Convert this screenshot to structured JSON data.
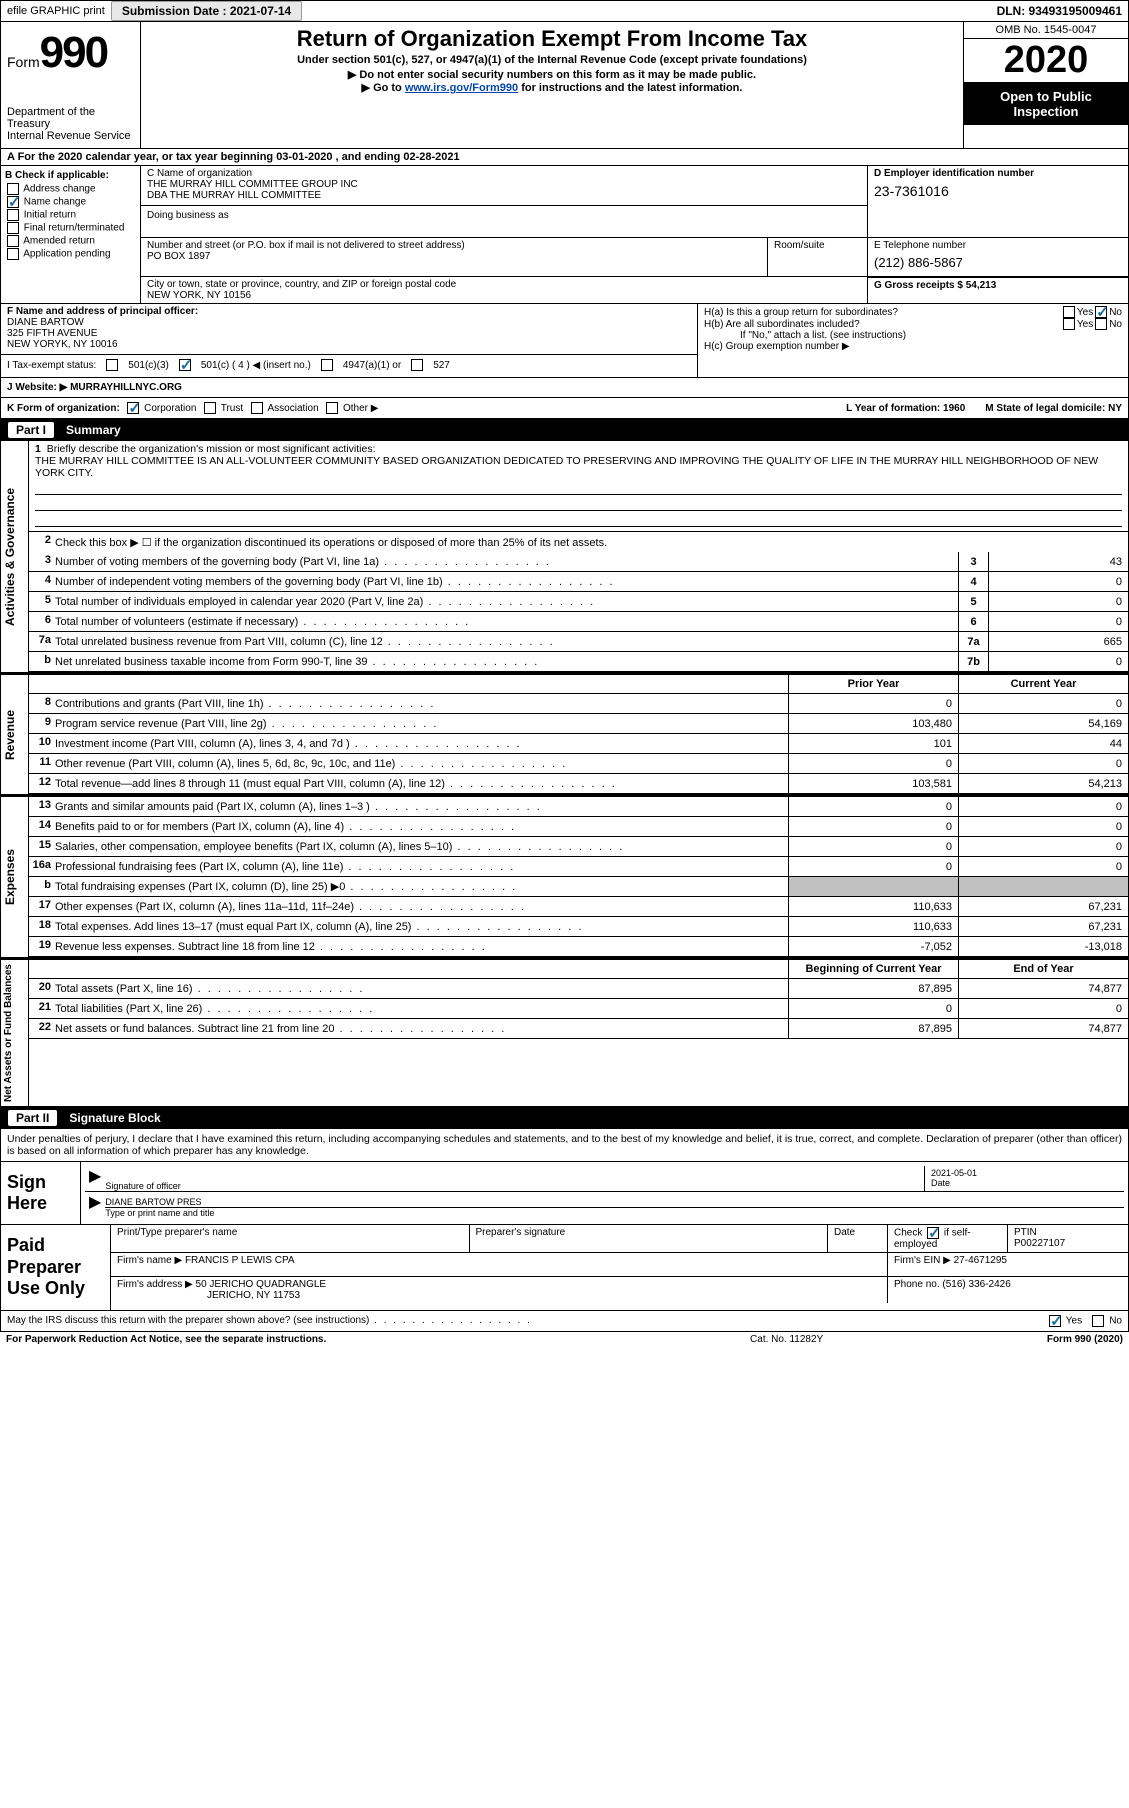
{
  "header": {
    "efile_label": "efile GRAPHIC print",
    "submission_label": "Submission Date : 2021-07-14",
    "dln_label": "DLN: 93493195009461"
  },
  "title": {
    "form_prefix": "Form",
    "form_number": "990",
    "dept": "Department of the Treasury\nInternal Revenue Service",
    "main": "Return of Organization Exempt From Income Tax",
    "sub": "Under section 501(c), 527, or 4947(a)(1) of the Internal Revenue Code (except private foundations)",
    "note1": "▶ Do not enter social security numbers on this form as it may be made public.",
    "note2_pre": "▶ Go to ",
    "note2_link": "www.irs.gov/Form990",
    "note2_post": " for instructions and the latest information.",
    "omb": "OMB No. 1545-0047",
    "year": "2020",
    "public": "Open to Public Inspection"
  },
  "a_row": "A For the 2020 calendar year, or tax year beginning 03-01-2020     , and ending 02-28-2021",
  "box_b": {
    "header": "B Check if applicable:",
    "items": [
      "Address change",
      "Name change",
      "Initial return",
      "Final return/terminated",
      "Amended return",
      "Application pending"
    ],
    "checked_idx": 1
  },
  "box_c": {
    "label": "C Name of organization",
    "name": "THE MURRAY HILL COMMITTEE GROUP INC\nDBA THE MURRAY HILL COMMITTEE",
    "dba_label": "Doing business as",
    "street_label": "Number and street (or P.O. box if mail is not delivered to street address)",
    "street": "PO BOX 1897",
    "room_label": "Room/suite",
    "city_label": "City or town, state or province, country, and ZIP or foreign postal code",
    "city": "NEW YORK, NY  10156"
  },
  "box_d": {
    "label": "D Employer identification number",
    "ein": "23-7361016"
  },
  "box_e": {
    "label": "E Telephone number",
    "tel": "(212) 886-5867"
  },
  "box_g": {
    "label": "G Gross receipts $ 54,213"
  },
  "box_f": {
    "label": "F  Name and address of principal officer:",
    "name": "DIANE BARTOW",
    "street": "325 FIFTH AVENUE",
    "city": "NEW YORYK, NY  10016"
  },
  "box_h": {
    "a": "H(a)  Is this a group return for subordinates?",
    "b": "H(b)  Are all subordinates included?",
    "b_note": "If \"No,\" attach a list. (see instructions)",
    "c": "H(c)  Group exemption number ▶"
  },
  "status": {
    "label": "I   Tax-exempt status:",
    "opts": [
      "501(c)(3)",
      "501(c) ( 4 ) ◀ (insert no.)",
      "4947(a)(1) or",
      "527"
    ],
    "checked_idx": 1
  },
  "j": {
    "label": "J   Website: ▶",
    "value": "MURRAYHILLNYC.ORG"
  },
  "k": {
    "label": "K Form of organization:",
    "opts": [
      "Corporation",
      "Trust",
      "Association",
      "Other ▶"
    ],
    "checked_idx": 0,
    "l": "L Year of formation: 1960",
    "m": "M State of legal domicile: NY"
  },
  "part1": {
    "num": "Part I",
    "title": "Summary"
  },
  "mission": {
    "num": "1",
    "label": "Briefly describe the organization's mission or most significant activities:",
    "text": "THE MURRAY HILL COMMITTEE IS AN ALL-VOLUNTEER COMMUNITY BASED ORGANIZATION DEDICATED TO PRESERVING AND IMPROVING THE QUALITY OF LIFE IN THE MURRAY HILL NEIGHBORHOOD OF NEW YORK CITY."
  },
  "gov": {
    "tab": "Activities & Governance",
    "l2": "Check this box ▶ ☐  if the organization discontinued its operations or disposed of more than 25% of its net assets.",
    "lines": [
      {
        "n": "3",
        "d": "Number of voting members of the governing body (Part VI, line 1a)",
        "box": "3",
        "v": "43"
      },
      {
        "n": "4",
        "d": "Number of independent voting members of the governing body (Part VI, line 1b)",
        "box": "4",
        "v": "0"
      },
      {
        "n": "5",
        "d": "Total number of individuals employed in calendar year 2020 (Part V, line 2a)",
        "box": "5",
        "v": "0"
      },
      {
        "n": "6",
        "d": "Total number of volunteers (estimate if necessary)",
        "box": "6",
        "v": "0"
      },
      {
        "n": "7a",
        "d": "Total unrelated business revenue from Part VIII, column (C), line 12",
        "box": "7a",
        "v": "665"
      },
      {
        "n": "b",
        "d": "Net unrelated business taxable income from Form 990-T, line 39",
        "box": "7b",
        "v": "0"
      }
    ]
  },
  "rev": {
    "tab": "Revenue",
    "hdr_prior": "Prior Year",
    "hdr_curr": "Current Year",
    "lines": [
      {
        "n": "8",
        "d": "Contributions and grants (Part VIII, line 1h)",
        "p": "0",
        "c": "0"
      },
      {
        "n": "9",
        "d": "Program service revenue (Part VIII, line 2g)",
        "p": "103,480",
        "c": "54,169"
      },
      {
        "n": "10",
        "d": "Investment income (Part VIII, column (A), lines 3, 4, and 7d )",
        "p": "101",
        "c": "44"
      },
      {
        "n": "11",
        "d": "Other revenue (Part VIII, column (A), lines 5, 6d, 8c, 9c, 10c, and 11e)",
        "p": "0",
        "c": "0"
      },
      {
        "n": "12",
        "d": "Total revenue—add lines 8 through 11 (must equal Part VIII, column (A), line 12)",
        "p": "103,581",
        "c": "54,213"
      }
    ]
  },
  "exp": {
    "tab": "Expenses",
    "lines": [
      {
        "n": "13",
        "d": "Grants and similar amounts paid (Part IX, column (A), lines 1–3 )",
        "p": "0",
        "c": "0"
      },
      {
        "n": "14",
        "d": "Benefits paid to or for members (Part IX, column (A), line 4)",
        "p": "0",
        "c": "0"
      },
      {
        "n": "15",
        "d": "Salaries, other compensation, employee benefits (Part IX, column (A), lines 5–10)",
        "p": "0",
        "c": "0"
      },
      {
        "n": "16a",
        "d": "Professional fundraising fees (Part IX, column (A), line 11e)",
        "p": "0",
        "c": "0"
      },
      {
        "n": "b",
        "d": "Total fundraising expenses (Part IX, column (D), line 25) ▶0",
        "p": "",
        "c": "",
        "grey": true
      },
      {
        "n": "17",
        "d": "Other expenses (Part IX, column (A), lines 11a–11d, 11f–24e)",
        "p": "110,633",
        "c": "67,231"
      },
      {
        "n": "18",
        "d": "Total expenses. Add lines 13–17 (must equal Part IX, column (A), line 25)",
        "p": "110,633",
        "c": "67,231"
      },
      {
        "n": "19",
        "d": "Revenue less expenses. Subtract line 18 from line 12",
        "p": "-7,052",
        "c": "-13,018"
      }
    ]
  },
  "net": {
    "tab": "Net Assets or Fund Balances",
    "hdr_beg": "Beginning of Current Year",
    "hdr_end": "End of Year",
    "lines": [
      {
        "n": "20",
        "d": "Total assets (Part X, line 16)",
        "p": "87,895",
        "c": "74,877"
      },
      {
        "n": "21",
        "d": "Total liabilities (Part X, line 26)",
        "p": "0",
        "c": "0"
      },
      {
        "n": "22",
        "d": "Net assets or fund balances. Subtract line 21 from line 20",
        "p": "87,895",
        "c": "74,877"
      }
    ]
  },
  "part2": {
    "num": "Part II",
    "title": "Signature Block"
  },
  "sig": {
    "intro": "Under penalties of perjury, I declare that I have examined this return, including accompanying schedules and statements, and to the best of my knowledge and belief, it is true, correct, and complete. Declaration of preparer (other than officer) is based on all information of which preparer has any knowledge.",
    "sign_here": "Sign Here",
    "sig_officer": "Signature of officer",
    "date_label": "Date",
    "date": "2021-05-01",
    "name_title": "DIANE BARTOW PRES",
    "type_label": "Type or print name and title"
  },
  "paid": {
    "label": "Paid Preparer Use Only",
    "h1": "Print/Type preparer's name",
    "h2": "Preparer's signature",
    "h3": "Date",
    "h4_pre": "Check",
    "h4_post": "if self-employed",
    "h5": "PTIN",
    "ptin": "P00227107",
    "firm_name_label": "Firm's name     ▶",
    "firm_name": "FRANCIS P LEWIS CPA",
    "firm_ein_label": "Firm's EIN ▶",
    "firm_ein": "27-4671295",
    "firm_addr_label": "Firm's address ▶",
    "firm_addr": "50 JERICHO QUADRANGLE",
    "firm_city": "JERICHO, NY  11753",
    "phone_label": "Phone no.",
    "phone": "(516) 336-2426"
  },
  "footer": {
    "q": "May the IRS discuss this return with the preparer shown above? (see instructions)",
    "yes": "Yes",
    "no": "No"
  },
  "paperwork": {
    "l": "For Paperwork Reduction Act Notice, see the separate instructions.",
    "c": "Cat. No. 11282Y",
    "r": "Form 990 (2020)"
  },
  "colors": {
    "link": "#0645ad",
    "check": "#1a6b9e",
    "grey": "#c0c0c0"
  }
}
